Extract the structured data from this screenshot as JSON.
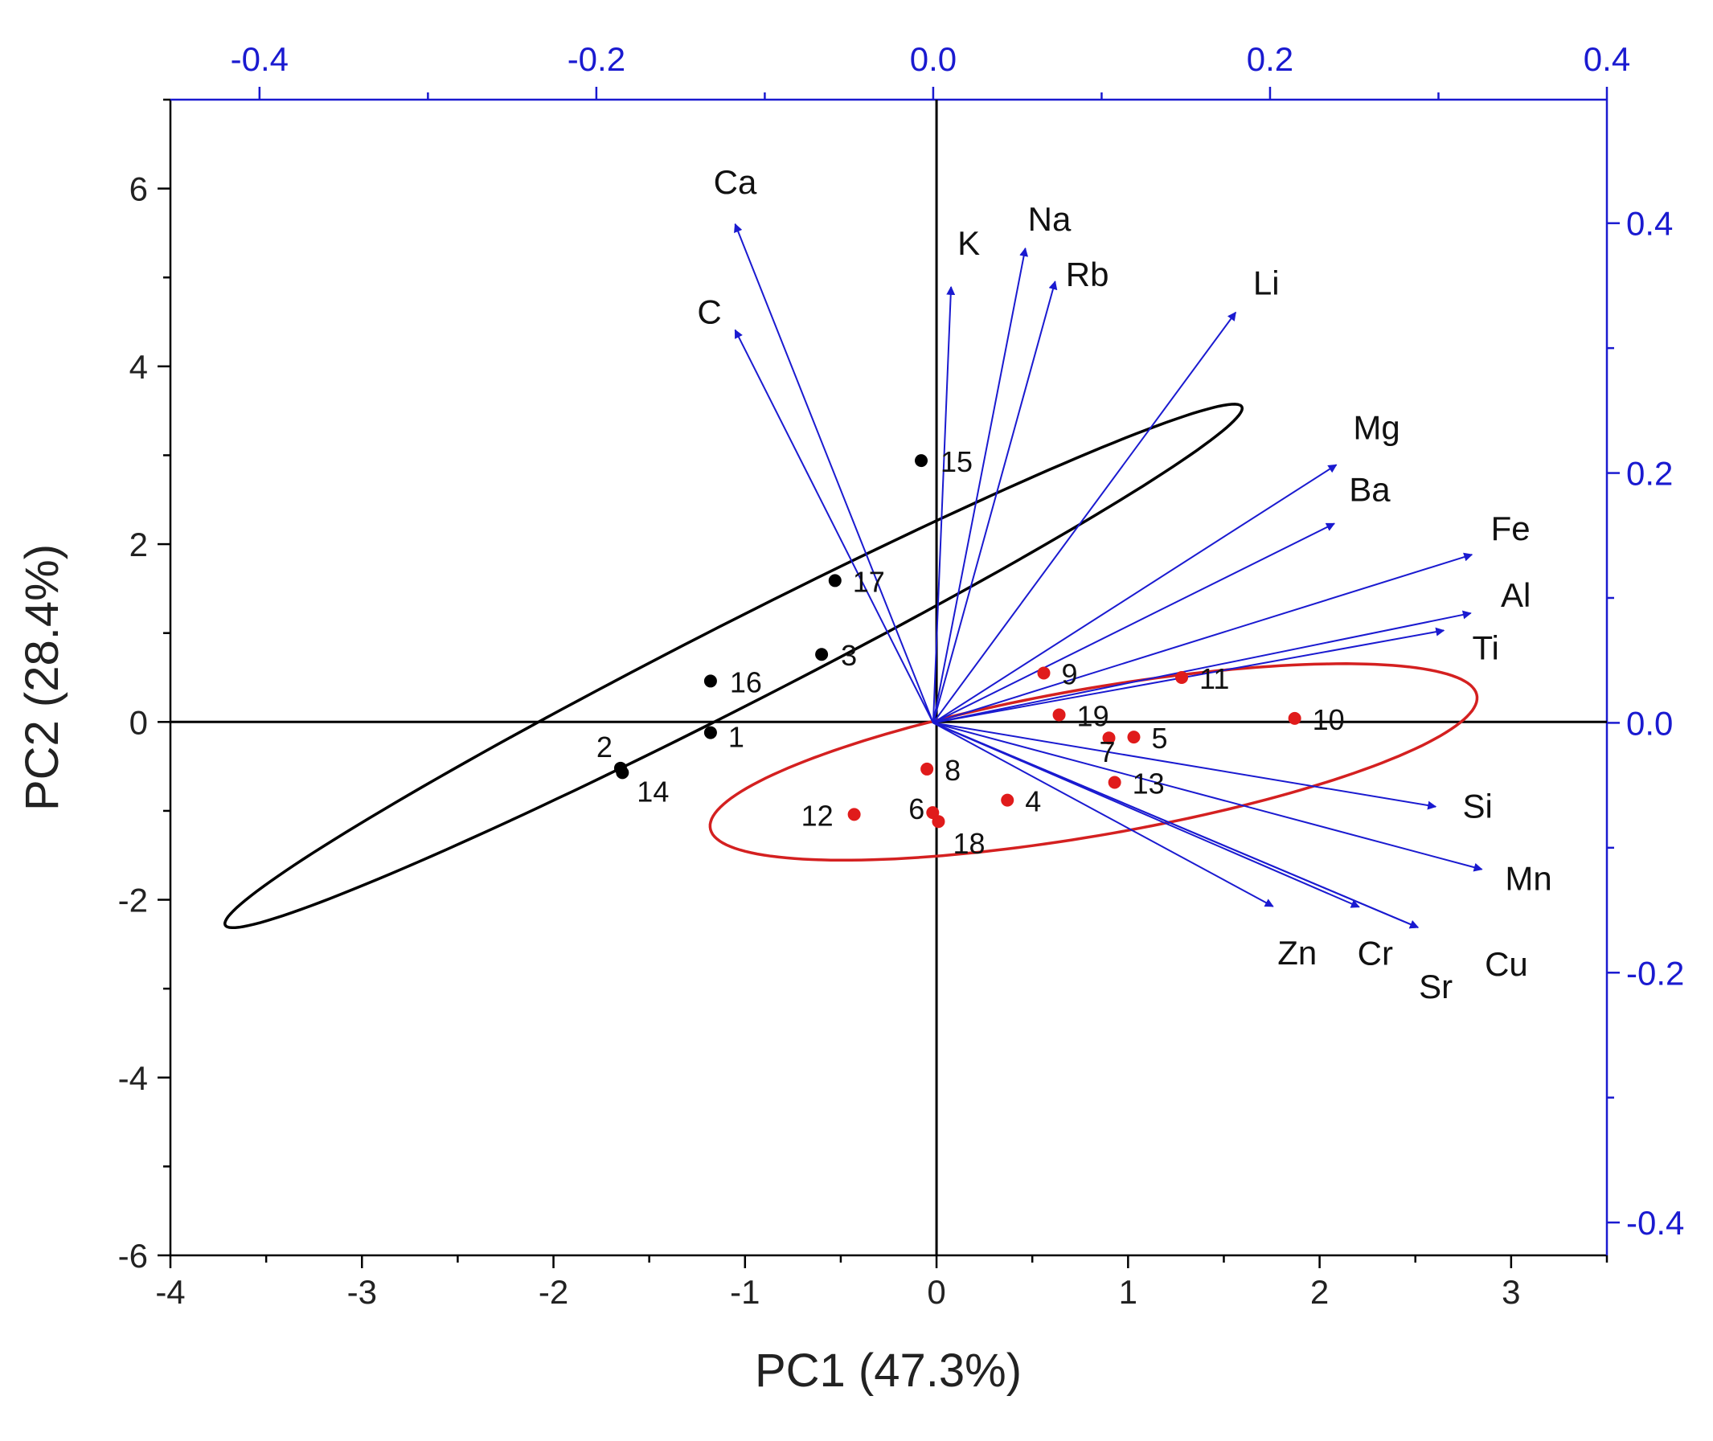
{
  "chart_data": {
    "type": "scatter",
    "title": "",
    "xlabel": "PC1 (47.3%)",
    "ylabel": "PC2 (28.4%)",
    "xlim": [
      -4,
      3.5
    ],
    "ylim": [
      -6,
      7
    ],
    "xticks": [
      "-4",
      "-3",
      "-2",
      "-1",
      "0",
      "1",
      "2",
      "3"
    ],
    "yticks": [
      "-6",
      "-4",
      "-2",
      "0",
      "2",
      "4",
      "6"
    ],
    "top_axis": {
      "xlim": [
        -0.4529,
        0.4
      ],
      "ticks": [
        "-0.4",
        "-0.2",
        "0.0",
        "0.2",
        "0.4"
      ],
      "color": "#1a1ad0"
    },
    "right_axis": {
      "ylim": [
        -0.4263,
        0.4989
      ],
      "ticks": [
        "-0.4",
        "-0.2",
        "0.0",
        "0.2",
        "0.4"
      ],
      "color": "#1a1ad0"
    },
    "grid": false,
    "colors": {
      "group1": "#000000",
      "group2": "#e01b1b",
      "loadings": "#1a1ad0",
      "ellipse1": "#000000",
      "ellipse2": "#d42020"
    },
    "scores": [
      {
        "label": "1",
        "x": -1.18,
        "y": -0.12,
        "group": 1
      },
      {
        "label": "2",
        "x": -1.65,
        "y": -0.52,
        "group": 1
      },
      {
        "label": "3",
        "x": -0.6,
        "y": 0.76,
        "group": 1
      },
      {
        "label": "4",
        "x": 0.37,
        "y": -0.88,
        "group": 2
      },
      {
        "label": "5",
        "x": 1.03,
        "y": -0.17,
        "group": 2
      },
      {
        "label": "6",
        "x": -0.02,
        "y": -1.02,
        "group": 2
      },
      {
        "label": "7",
        "x": 0.9,
        "y": -0.18,
        "group": 2
      },
      {
        "label": "8",
        "x": -0.05,
        "y": -0.53,
        "group": 2
      },
      {
        "label": "9",
        "x": 0.56,
        "y": 0.55,
        "group": 2
      },
      {
        "label": "10",
        "x": 1.87,
        "y": 0.04,
        "group": 2
      },
      {
        "label": "11",
        "x": 1.28,
        "y": 0.5,
        "group": 2
      },
      {
        "label": "12",
        "x": -0.43,
        "y": -1.04,
        "group": 2
      },
      {
        "label": "13",
        "x": 0.93,
        "y": -0.68,
        "group": 2
      },
      {
        "label": "14",
        "x": -1.64,
        "y": -0.57,
        "group": 1
      },
      {
        "label": "15",
        "x": -0.08,
        "y": 2.94,
        "group": 1
      },
      {
        "label": "16",
        "x": -1.18,
        "y": 0.46,
        "group": 1
      },
      {
        "label": "17",
        "x": -0.53,
        "y": 1.59,
        "group": 1
      },
      {
        "label": "18",
        "x": 0.01,
        "y": -1.12,
        "group": 2
      },
      {
        "label": "19",
        "x": 0.64,
        "y": 0.08,
        "group": 2
      }
    ],
    "loadings": [
      {
        "label": "Ca",
        "x": -0.1176,
        "y": 0.3993
      },
      {
        "label": "C",
        "x": -0.1176,
        "y": 0.3145
      },
      {
        "label": "K",
        "x": 0.0106,
        "y": 0.349
      },
      {
        "label": "Na",
        "x": 0.0547,
        "y": 0.3799
      },
      {
        "label": "Rb",
        "x": 0.0724,
        "y": 0.3534
      },
      {
        "label": "Li",
        "x": 0.1796,
        "y": 0.3286
      },
      {
        "label": "Mg",
        "x": 0.2394,
        "y": 0.2066
      },
      {
        "label": "Ba",
        "x": 0.2382,
        "y": 0.1596
      },
      {
        "label": "Fe",
        "x": 0.3199,
        "y": 0.1347
      },
      {
        "label": "Al",
        "x": 0.3192,
        "y": 0.0878
      },
      {
        "label": "Ti",
        "x": 0.3032,
        "y": 0.074
      },
      {
        "label": "Si",
        "x": 0.2984,
        "y": -0.0671
      },
      {
        "label": "Mn",
        "x": 0.3258,
        "y": -0.1173
      },
      {
        "label": "Zn",
        "x": 0.2018,
        "y": -0.147
      },
      {
        "label": "Cr",
        "x": 0.2529,
        "y": -0.1474
      },
      {
        "label": "Sr",
        "x": 0.2879,
        "y": -0.1638
      },
      {
        "label": "Cu",
        "x": 0.2878,
        "y": -0.1638
      }
    ],
    "ellipses": [
      {
        "group": 1,
        "cx": -1.06,
        "cy": 0.63,
        "rx": 3.95,
        "ry": 0.35,
        "angle_deg": 48
      },
      {
        "group": 2,
        "cx": 0.82,
        "cy": -0.45,
        "rx": 2.15,
        "ry": 0.78,
        "angle_deg": 23
      }
    ]
  }
}
